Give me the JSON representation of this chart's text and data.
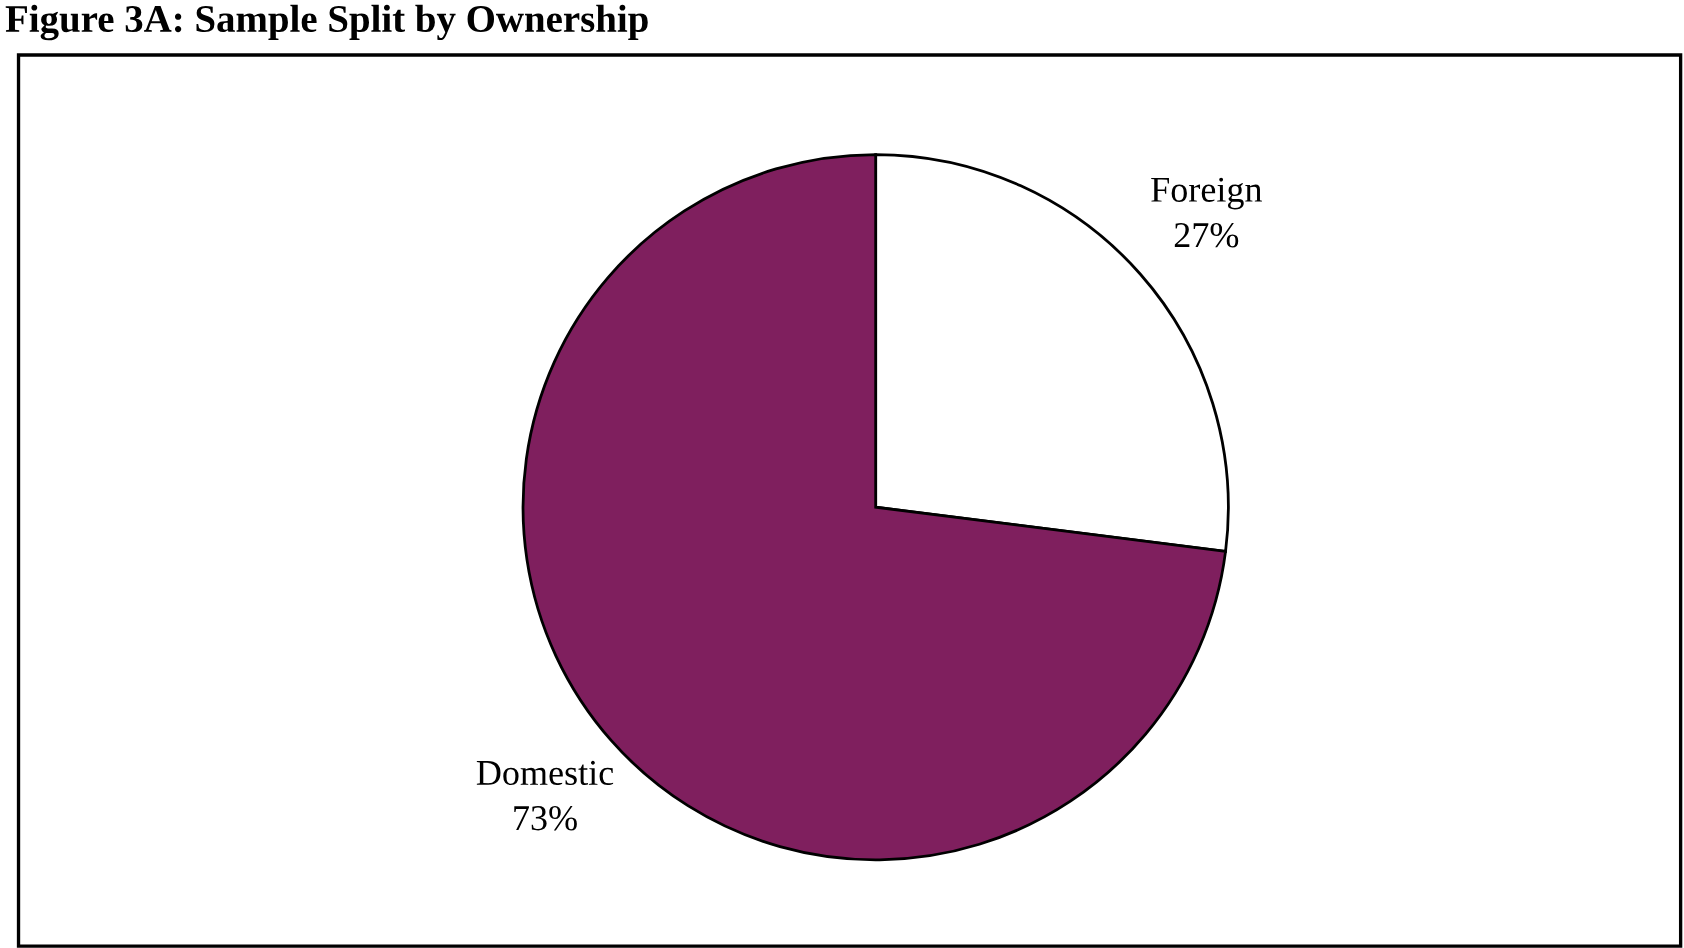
{
  "chart_data": {
    "type": "pie",
    "title": "Figure 3A: Sample Split by Ownership",
    "categories": [
      "Foreign",
      "Domestic"
    ],
    "values": [
      27,
      73
    ],
    "value_labels": [
      "27%",
      "73%"
    ],
    "colors": [
      "#ffffff",
      "#7f1f5e"
    ]
  }
}
